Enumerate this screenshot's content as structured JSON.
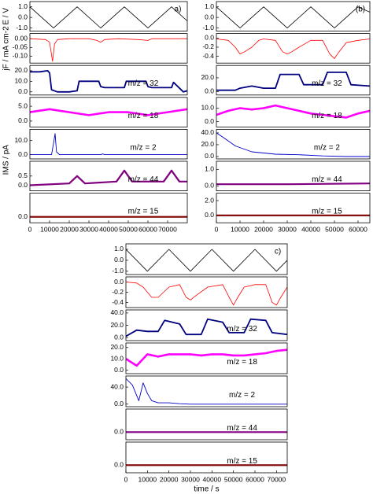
{
  "chart_data": [
    {
      "type": "line",
      "panel": "a)",
      "ylabel": "E / V",
      "x": [
        0,
        12000,
        24000,
        36000,
        48000,
        60000,
        72000,
        80000
      ],
      "values": [
        1,
        -1,
        1,
        -1,
        1,
        -1,
        1,
        -0.33
      ],
      "color": "#000000",
      "xlim": [
        0,
        80000
      ],
      "ylim": [
        -1.3,
        1.5
      ],
      "yticks": [
        {
          "value": -1,
          "label": "-1.0"
        },
        {
          "value": 0,
          "label": "0.0"
        },
        {
          "value": 1,
          "label": "1.0"
        }
      ]
    },
    {
      "type": "line",
      "ylabel": "jF / mA cm-2",
      "x": [
        0,
        8000,
        10000,
        11500,
        12500,
        14000,
        20000,
        30000,
        34000,
        36000,
        38000,
        45000,
        55000,
        60000,
        62000,
        70000,
        80000
      ],
      "values": [
        0,
        -0.005,
        -0.02,
        -0.13,
        -0.03,
        -0.005,
        0,
        0,
        -0.01,
        -0.02,
        -0.005,
        0,
        -0.005,
        -0.01,
        0,
        0,
        0
      ],
      "color": "#ff0000",
      "xlim": [
        0,
        80000
      ],
      "ylim": [
        -0.14,
        0.03
      ],
      "yticks": [
        {
          "value": -0.1,
          "label": "-0.10"
        },
        {
          "value": -0.05,
          "label": "-0.05"
        },
        {
          "value": 0,
          "label": "0.00"
        }
      ]
    },
    {
      "type": "line",
      "annotation": "m/z = 32",
      "x": [
        0,
        5000,
        9000,
        10000,
        11000,
        14000,
        20000,
        24000,
        25000,
        35000,
        36000,
        38000,
        48000,
        49000,
        50000,
        59000,
        60000,
        62000,
        72000,
        73000,
        78000,
        80000
      ],
      "values": [
        19,
        19,
        20,
        18,
        2,
        0,
        0,
        1,
        10,
        10,
        5,
        4,
        4,
        10,
        10,
        10,
        5,
        4,
        4,
        9,
        0,
        1
      ],
      "color": "#000080",
      "xlim": [
        0,
        80000
      ],
      "ylim": [
        -3,
        25
      ],
      "yticks": [
        {
          "value": 0,
          "label": "0.0"
        },
        {
          "value": 10,
          "label": "10.0"
        },
        {
          "value": 20,
          "label": "20.0"
        }
      ]
    },
    {
      "type": "line",
      "annotation": "m/z = 18",
      "x": [
        0,
        10000,
        20000,
        30000,
        40000,
        50000,
        60000,
        70000,
        80000
      ],
      "values": [
        3,
        4,
        3,
        2,
        3,
        3,
        2,
        3,
        4
      ],
      "color": "#ff00ff",
      "xlim": [
        0,
        80000
      ],
      "ylim": [
        -2,
        8
      ],
      "yticks": [
        {
          "value": 0,
          "label": "0.0"
        },
        {
          "value": 5,
          "label": "5.0"
        }
      ]
    },
    {
      "type": "line",
      "annotation": "m/z = 2",
      "ylabel": "IMS / pA",
      "x": [
        0,
        11000,
        12000,
        12800,
        13500,
        15000,
        36000,
        37000,
        38000,
        80000
      ],
      "values": [
        0,
        0,
        8,
        15,
        2,
        0,
        0,
        0.5,
        0,
        0
      ],
      "color": "#0000cc",
      "xlim": [
        0,
        80000
      ],
      "ylim": [
        -3,
        18
      ],
      "yticks": [
        {
          "value": 0,
          "label": "0.0"
        },
        {
          "value": 10,
          "label": "10.0"
        }
      ]
    },
    {
      "type": "line",
      "annotation": "m/z = 44",
      "x": [
        0,
        20000,
        24000,
        28000,
        44000,
        48000,
        52000,
        68000,
        72000,
        76000,
        80000
      ],
      "values": [
        0,
        0.1,
        0.5,
        0.1,
        0.2,
        0.8,
        0.2,
        0.2,
        0.8,
        0.2,
        0.2
      ],
      "color": "#800080",
      "xlim": [
        0,
        80000
      ],
      "ylim": [
        -0.3,
        1.3
      ],
      "yticks": [
        {
          "value": 0,
          "label": "0.0"
        },
        {
          "value": 0.5,
          "label": "0.5"
        }
      ]
    },
    {
      "type": "line",
      "annotation": "m/z = 15",
      "x": [
        0,
        40000,
        80000
      ],
      "values": [
        0,
        0,
        0
      ],
      "color": "#800000",
      "xlim": [
        0,
        80000
      ],
      "ylim": [
        -0.5,
        2
      ],
      "yticks": [
        {
          "value": 0,
          "label": "0.0"
        }
      ],
      "xticks": [
        0,
        10000,
        20000,
        30000,
        40000,
        50000,
        60000,
        70000
      ]
    },
    {
      "type": "line",
      "panel": "(b)",
      "x": [
        0,
        10000,
        20000,
        30000,
        40000,
        50000,
        60000,
        65000
      ],
      "values": [
        1,
        -1,
        1,
        -1,
        1,
        -1,
        1,
        0.5
      ],
      "color": "#000000",
      "xlim": [
        0,
        65000
      ],
      "ylim": [
        -1.3,
        1.5
      ],
      "yticks": [
        {
          "value": -1,
          "label": "-1.0"
        },
        {
          "value": 0,
          "label": "0.0"
        },
        {
          "value": 1,
          "label": "1.0"
        }
      ]
    },
    {
      "type": "line",
      "x": [
        0,
        5000,
        8000,
        10000,
        12000,
        15000,
        18000,
        20000,
        25000,
        28000,
        30000,
        32000,
        35000,
        40000,
        45000,
        48000,
        50000,
        52000,
        55000,
        60000,
        65000
      ],
      "values": [
        -0.02,
        -0.05,
        -0.2,
        -0.35,
        -0.3,
        -0.2,
        -0.05,
        -0.02,
        -0.05,
        -0.3,
        -0.35,
        -0.3,
        -0.2,
        -0.05,
        -0.05,
        -0.35,
        -0.45,
        -0.3,
        -0.1,
        -0.05,
        -0.02
      ],
      "color": "#ff0000",
      "xlim": [
        0,
        65000
      ],
      "ylim": [
        -0.55,
        0.1
      ],
      "yticks": [
        {
          "value": -0.4,
          "label": "-0.4"
        },
        {
          "value": -0.2,
          "label": "-0.2"
        },
        {
          "value": 0,
          "label": "0.0"
        }
      ]
    },
    {
      "type": "line",
      "annotation": "m/z = 32",
      "x": [
        0,
        8000,
        10000,
        15000,
        20000,
        25000,
        27000,
        35000,
        37000,
        45000,
        47000,
        55000,
        57000,
        65000
      ],
      "values": [
        2,
        2,
        5,
        8,
        5,
        5,
        25,
        25,
        10,
        10,
        28,
        28,
        10,
        8
      ],
      "color": "#000080",
      "xlim": [
        0,
        65000
      ],
      "ylim": [
        -5,
        38
      ],
      "yticks": [
        {
          "value": 0,
          "label": "0.0"
        },
        {
          "value": 20,
          "label": "20.0"
        }
      ]
    },
    {
      "type": "line",
      "annotation": "m/z = 18",
      "x": [
        0,
        5000,
        10000,
        15000,
        20000,
        25000,
        30000,
        35000,
        40000,
        45000,
        50000,
        55000,
        60000,
        65000
      ],
      "values": [
        5,
        8,
        10,
        9,
        10,
        12,
        10,
        8,
        6,
        5,
        4,
        3,
        6,
        8
      ],
      "color": "#ff00ff",
      "xlim": [
        0,
        65000
      ],
      "ylim": [
        -4,
        18
      ],
      "yticks": [
        {
          "value": 0,
          "label": "0.0"
        },
        {
          "value": 10,
          "label": "10.0"
        }
      ]
    },
    {
      "type": "line",
      "annotation": "m/z = 2",
      "x": [
        0,
        3000,
        8000,
        15000,
        25000,
        35000,
        45000,
        55000,
        65000
      ],
      "values": [
        40,
        32,
        18,
        8,
        4,
        3,
        1,
        0,
        0
      ],
      "color": "#0000cc",
      "xlim": [
        0,
        65000
      ],
      "ylim": [
        -4,
        46
      ],
      "yticks": [
        {
          "value": 0,
          "label": "0.0"
        },
        {
          "value": 20,
          "label": "20.0"
        },
        {
          "value": 40,
          "label": "40.0"
        }
      ]
    },
    {
      "type": "line",
      "annotation": "m/z = 44",
      "x": [
        0,
        30000,
        65000
      ],
      "values": [
        0.1,
        0.1,
        0.15
      ],
      "color": "#800080",
      "xlim": [
        0,
        65000
      ],
      "ylim": [
        -0.3,
        1.5
      ],
      "yticks": [
        {
          "value": 0,
          "label": "0.0"
        },
        {
          "value": 1,
          "label": "1.0"
        }
      ]
    },
    {
      "type": "line",
      "annotation": "m/z = 15",
      "x": [
        0,
        65000
      ],
      "values": [
        0,
        0
      ],
      "color": "#800000",
      "xlim": [
        0,
        65000
      ],
      "ylim": [
        -1,
        3
      ],
      "yticks": [
        {
          "value": 0,
          "label": "0.0"
        },
        {
          "value": 2,
          "label": "2.0"
        }
      ],
      "xticks": [
        0,
        10000,
        20000,
        30000,
        40000,
        50000,
        60000
      ]
    },
    {
      "type": "line",
      "panel": "c)",
      "x": [
        0,
        10000,
        20000,
        30000,
        40000,
        50000,
        60000,
        70000,
        75000
      ],
      "values": [
        1,
        -1,
        1,
        -1,
        1,
        -1,
        1,
        -1,
        0
      ],
      "color": "#000000",
      "xlim": [
        0,
        75000
      ],
      "ylim": [
        -1.3,
        1.5
      ],
      "yticks": [
        {
          "value": -1,
          "label": "-1.0"
        },
        {
          "value": 0,
          "label": "0.0"
        },
        {
          "value": 1,
          "label": "1.0"
        }
      ]
    },
    {
      "type": "line",
      "x": [
        0,
        5000,
        8000,
        12000,
        15000,
        20000,
        25000,
        28000,
        30000,
        33000,
        38000,
        45000,
        48000,
        50000,
        52000,
        55000,
        60000,
        65000,
        68000,
        70000,
        72000,
        75000
      ],
      "values": [
        0,
        -0.02,
        -0.1,
        -0.3,
        -0.3,
        -0.1,
        -0.05,
        -0.3,
        -0.35,
        -0.25,
        -0.1,
        -0.05,
        -0.3,
        -0.45,
        -0.3,
        -0.1,
        -0.05,
        -0.05,
        -0.4,
        -0.45,
        -0.3,
        -0.1
      ],
      "color": "#ff0000",
      "xlim": [
        0,
        75000
      ],
      "ylim": [
        -0.5,
        0.1
      ],
      "yticks": [
        {
          "value": -0.4,
          "label": "-0.4"
        },
        {
          "value": -0.2,
          "label": "-0.2"
        },
        {
          "value": 0,
          "label": "0.0"
        }
      ]
    },
    {
      "type": "line",
      "annotation": "m/z = 32",
      "x": [
        0,
        5000,
        10000,
        15000,
        18000,
        25000,
        28000,
        35000,
        38000,
        45000,
        48000,
        55000,
        58000,
        65000,
        68000,
        75000
      ],
      "values": [
        2,
        12,
        10,
        10,
        28,
        22,
        5,
        5,
        30,
        25,
        8,
        8,
        30,
        28,
        8,
        5
      ],
      "color": "#000080",
      "xlim": [
        0,
        75000
      ],
      "ylim": [
        -5,
        45
      ],
      "yticks": [
        {
          "value": 0,
          "label": "0.0"
        },
        {
          "value": 20,
          "label": "20.0"
        },
        {
          "value": 40,
          "label": "40.0"
        }
      ]
    },
    {
      "type": "line",
      "annotation": "m/z = 18",
      "x": [
        0,
        5000,
        10000,
        15000,
        20000,
        25000,
        30000,
        35000,
        40000,
        45000,
        50000,
        55000,
        60000,
        65000,
        70000,
        75000
      ],
      "values": [
        10,
        4,
        14,
        12,
        14,
        14,
        14,
        13,
        14,
        14,
        13,
        13,
        14,
        15,
        17,
        18
      ],
      "color": "#ff00ff",
      "xlim": [
        0,
        75000
      ],
      "ylim": [
        -3,
        24
      ],
      "yticks": [
        {
          "value": 0,
          "label": "0.0"
        },
        {
          "value": 10,
          "label": "10.0"
        },
        {
          "value": 20,
          "label": "20.0"
        }
      ]
    },
    {
      "type": "line",
      "annotation": "m/z = 2",
      "x": [
        0,
        3000,
        6000,
        8000,
        10000,
        12000,
        15000,
        20000,
        25000,
        30000,
        75000
      ],
      "values": [
        60,
        45,
        8,
        50,
        25,
        8,
        3,
        3,
        1,
        0,
        0
      ],
      "color": "#0000cc",
      "xlim": [
        0,
        75000
      ],
      "ylim": [
        -6,
        66
      ],
      "yticks": [
        {
          "value": 0,
          "label": "0.0"
        },
        {
          "value": 40,
          "label": "40.0"
        }
      ]
    },
    {
      "type": "line",
      "annotation": "m/z = 44",
      "x": [
        0,
        75000
      ],
      "values": [
        0,
        0
      ],
      "color": "#800080",
      "xlim": [
        0,
        75000
      ],
      "ylim": [
        -1,
        3
      ],
      "yticks": [
        {
          "value": 0,
          "label": "0.0"
        }
      ]
    },
    {
      "type": "line",
      "annotation": "m/z = 15",
      "xlabel": "time / s",
      "x": [
        0,
        75000
      ],
      "values": [
        0,
        0
      ],
      "color": "#800000",
      "xlim": [
        0,
        75000
      ],
      "ylim": [
        -1,
        3
      ],
      "yticks": [
        {
          "value": 0,
          "label": "0.0"
        }
      ],
      "xticks": [
        0,
        10000,
        20000,
        30000,
        40000,
        50000,
        60000,
        70000
      ]
    }
  ]
}
